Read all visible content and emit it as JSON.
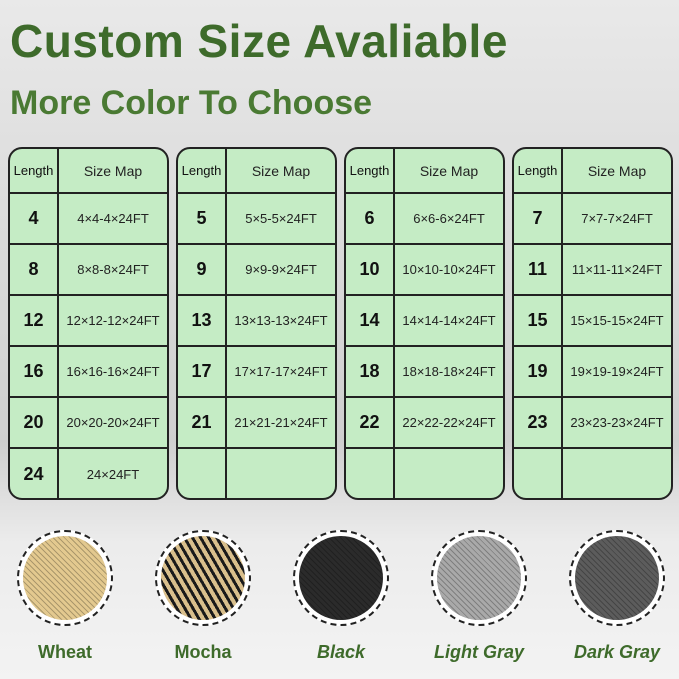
{
  "title": "Custom Size Avaliable",
  "subtitle": "More Color To Choose",
  "table_headers": {
    "length": "Length",
    "size": "Size Map"
  },
  "tables": [
    {
      "rows": [
        [
          "4",
          "4×4-4×24FT"
        ],
        [
          "8",
          "8×8-8×24FT"
        ],
        [
          "12",
          "12×12-12×24FT"
        ],
        [
          "16",
          "16×16-16×24FT"
        ],
        [
          "20",
          "20×20-20×24FT"
        ],
        [
          "24",
          "24×24FT"
        ]
      ]
    },
    {
      "rows": [
        [
          "5",
          "5×5-5×24FT"
        ],
        [
          "9",
          "9×9-9×24FT"
        ],
        [
          "13",
          "13×13-13×24FT"
        ],
        [
          "17",
          "17×17-17×24FT"
        ],
        [
          "21",
          "21×21-21×24FT"
        ],
        [
          "",
          ""
        ]
      ]
    },
    {
      "rows": [
        [
          "6",
          "6×6-6×24FT"
        ],
        [
          "10",
          "10×10-10×24FT"
        ],
        [
          "14",
          "14×14-14×24FT"
        ],
        [
          "18",
          "18×18-18×24FT"
        ],
        [
          "22",
          "22×22-22×24FT"
        ],
        [
          "",
          ""
        ]
      ]
    },
    {
      "rows": [
        [
          "7",
          "7×7-7×24FT"
        ],
        [
          "11",
          "11×11-11×24FT"
        ],
        [
          "15",
          "15×15-15×24FT"
        ],
        [
          "19",
          "19×19-19×24FT"
        ],
        [
          "23",
          "23×23-23×24FT"
        ],
        [
          "",
          ""
        ]
      ]
    }
  ],
  "colors": [
    {
      "name": "Wheat",
      "swatch": "#e3c98f",
      "italic": false
    },
    {
      "name": "Mocha",
      "swatch": "#8a7452",
      "italic": false
    },
    {
      "name": "Black",
      "swatch": "#2b2b2b",
      "italic": true
    },
    {
      "name": "Light Gray",
      "swatch": "#a9a9a9",
      "italic": true
    },
    {
      "name": "Dark Gray",
      "swatch": "#5c5c5c",
      "italic": true
    }
  ]
}
